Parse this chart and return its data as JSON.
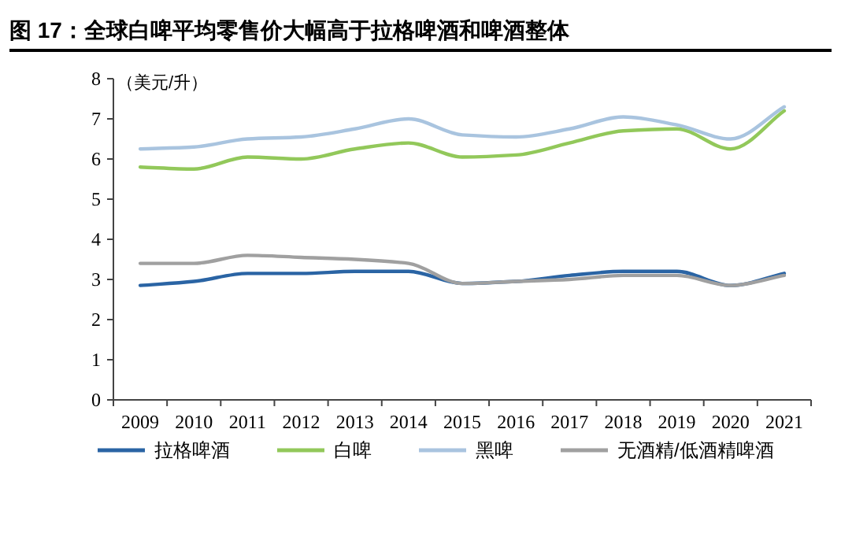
{
  "chart_data": {
    "type": "line",
    "title": "图 17：全球白啤平均零售价大幅高于拉格啤酒和啤酒整体",
    "ylabel": "（美元/升）",
    "categories": [
      "2009",
      "2010",
      "2011",
      "2012",
      "2013",
      "2014",
      "2015",
      "2016",
      "2017",
      "2018",
      "2019",
      "2020",
      "2021"
    ],
    "series": [
      {
        "name": "拉格啤酒",
        "color": "#2a64a4",
        "values": [
          2.85,
          2.95,
          3.15,
          3.15,
          3.2,
          3.2,
          2.9,
          2.95,
          3.1,
          3.2,
          3.2,
          2.85,
          3.15
        ]
      },
      {
        "name": "白啤",
        "color": "#92c85a",
        "values": [
          5.8,
          5.75,
          6.05,
          6.0,
          6.25,
          6.4,
          6.05,
          6.1,
          6.4,
          6.7,
          6.75,
          6.25,
          7.2
        ]
      },
      {
        "name": "黑啤",
        "color": "#a9c4df",
        "values": [
          6.25,
          6.3,
          6.5,
          6.55,
          6.75,
          7.0,
          6.6,
          6.55,
          6.75,
          7.05,
          6.85,
          6.5,
          7.3
        ]
      },
      {
        "name": "无酒精/低酒精啤酒",
        "color": "#a0a0a0",
        "values": [
          3.4,
          3.4,
          3.6,
          3.55,
          3.5,
          3.4,
          2.9,
          2.95,
          3.0,
          3.1,
          3.1,
          2.85,
          3.1
        ]
      }
    ],
    "ylim": [
      0,
      8
    ],
    "yticks": [
      0,
      1,
      2,
      3,
      4,
      5,
      6,
      7,
      8
    ],
    "grid": false,
    "legend": "bottom",
    "marker": "none",
    "line_style": "solid"
  }
}
